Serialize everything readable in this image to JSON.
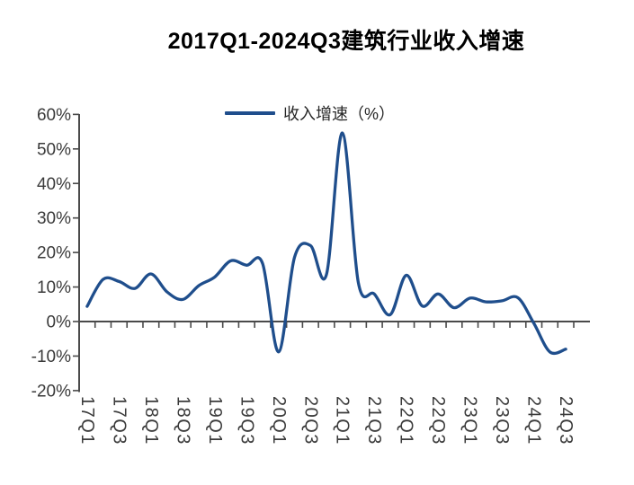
{
  "page": {
    "background": "#ffffff"
  },
  "chart_data": {
    "type": "line",
    "title": "2017Q1-2024Q3建筑行业收入增速",
    "legend": [
      {
        "label": "收入增速（%）",
        "color": "#1F4E8C"
      }
    ],
    "legend_position": "top-center",
    "smooth": true,
    "grid": false,
    "categories": [
      "17Q1",
      "17Q2",
      "17Q3",
      "17Q4",
      "18Q1",
      "18Q2",
      "18Q3",
      "18Q4",
      "19Q1",
      "19Q2",
      "19Q3",
      "19Q4",
      "20Q1",
      "20Q2",
      "20Q3",
      "20Q4",
      "21Q1",
      "21Q2",
      "21Q3",
      "21Q4",
      "22Q1",
      "22Q2",
      "22Q3",
      "22Q4",
      "23Q1",
      "23Q2",
      "23Q3",
      "23Q4",
      "24Q1",
      "24Q2",
      "24Q3"
    ],
    "x_tick_label_interval": 2,
    "x_tick_labels_shown": [
      "17Q1",
      "17Q3",
      "18Q1",
      "18Q3",
      "19Q1",
      "19Q3",
      "20Q1",
      "20Q3",
      "21Q1",
      "21Q3",
      "22Q1",
      "22Q3",
      "23Q1",
      "23Q3",
      "24Q1",
      "24Q3"
    ],
    "series": [
      {
        "name": "收入增速（%）",
        "values": [
          4.4,
          12.2,
          11.6,
          9.6,
          13.8,
          8.6,
          6.4,
          10.4,
          12.9,
          17.6,
          16.3,
          16.8,
          -8.8,
          18.6,
          22.0,
          13.6,
          54.6,
          11.2,
          8.0,
          2.0,
          13.4,
          4.5,
          8.0,
          4.0,
          6.8,
          5.7,
          6.0,
          6.9,
          -0.5,
          -8.8,
          -8.0
        ]
      }
    ],
    "ylim": [
      -20,
      60
    ],
    "ytick_step": 10,
    "ytick_labels": [
      "-20%",
      "-10%",
      "0%",
      "10%",
      "20%",
      "30%",
      "40%",
      "50%",
      "60%"
    ],
    "xlabel": "",
    "ylabel": "",
    "colors": {
      "line": "#1F4E8C",
      "axis": "#4a4a4a",
      "tick_text": "#3b3b3b",
      "title_text": "#000000"
    }
  }
}
